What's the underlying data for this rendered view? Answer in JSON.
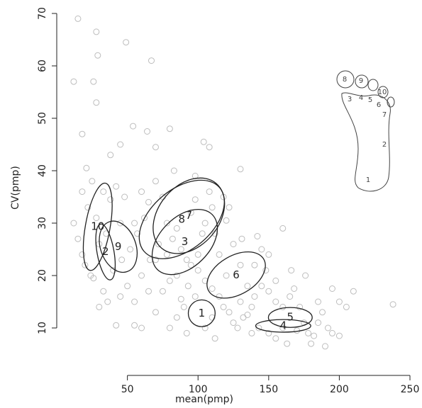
{
  "chart_data": {
    "type": "scatter",
    "x_label": "mean(pmp)",
    "y_label": "CV(pmp)",
    "xlim": [
      4,
      252
    ],
    "ylim": [
      3,
      71
    ],
    "xticks": [
      50,
      100,
      150,
      200,
      250
    ],
    "yticks": [
      10,
      20,
      30,
      40,
      50,
      60,
      70
    ],
    "point_color": "#bdbdbd",
    "ellipse_color": "#222222",
    "x": [
      15,
      28,
      29,
      49,
      67,
      12,
      26,
      28,
      18,
      54,
      80,
      64,
      45,
      38,
      70,
      83,
      98,
      104,
      108,
      130,
      108,
      118,
      110,
      122,
      120,
      112,
      131,
      142,
      160,
      145,
      150,
      140,
      95,
      85,
      60,
      50,
      45,
      55,
      30,
      21,
      18,
      22,
      25,
      33,
      38,
      42,
      48,
      12,
      15,
      18,
      20,
      24,
      26,
      33,
      36,
      40,
      46,
      52,
      57,
      62,
      60,
      65,
      70,
      75,
      78,
      82,
      88,
      92,
      100,
      105,
      110,
      115,
      118,
      122,
      125,
      128,
      132,
      138,
      140,
      145,
      150,
      155,
      160,
      165,
      168,
      172,
      175,
      178,
      180,
      182,
      185,
      188,
      192,
      195,
      195,
      200,
      205,
      210,
      238,
      150,
      155,
      160,
      143,
      138,
      135,
      130,
      120,
      98,
      90,
      85,
      80,
      92,
      105,
      110,
      112,
      70,
      65,
      75,
      80,
      70,
      78,
      85,
      95,
      98,
      103,
      105,
      60,
      66,
      72,
      55,
      45,
      35,
      30,
      28,
      42,
      55,
      190,
      170,
      163,
      200,
      185,
      176,
      166,
      148,
      155,
      130,
      125,
      115,
      135,
      100,
      93,
      88
    ],
    "y": [
      69,
      66.5,
      62,
      64.5,
      61,
      57,
      57,
      53,
      47,
      48.5,
      48,
      47.5,
      45,
      43,
      44.5,
      40,
      39,
      45.5,
      44.5,
      40.3,
      36,
      35,
      33,
      33,
      30.5,
      28,
      27,
      27.5,
      29,
      25,
      24,
      22,
      22,
      20,
      20,
      18,
      16,
      15,
      14,
      40.5,
      36,
      33,
      38,
      36,
      34.5,
      37,
      35,
      30,
      27,
      24,
      22,
      20,
      19.5,
      17,
      15,
      21,
      23,
      25,
      28,
      31,
      36,
      34,
      38,
      35,
      30,
      27,
      25,
      23,
      21,
      19,
      17.5,
      16,
      14,
      13,
      11,
      10,
      12,
      14,
      16,
      18,
      17,
      15,
      14,
      16,
      17.5,
      14,
      11,
      9,
      7,
      8.5,
      11,
      13,
      10,
      9,
      17.5,
      15,
      14,
      17,
      14.5,
      9,
      8,
      10,
      10,
      9,
      12.5,
      15,
      20,
      16,
      14,
      12,
      10,
      9,
      10,
      12,
      8,
      13,
      17,
      17,
      19,
      23,
      24,
      29,
      32,
      34.5,
      28,
      30,
      10,
      23,
      26,
      30,
      30,
      28,
      26,
      31,
      10.5,
      10.5,
      6.5,
      9.5,
      7,
      8.5,
      15,
      20,
      21,
      21,
      19,
      22,
      26,
      24,
      18,
      24,
      18,
      15.5
    ],
    "ellipses": [
      {
        "label": "1",
        "x": 102.6,
        "y": 12.8,
        "width": 19,
        "height": 5.1,
        "angle": 0
      },
      {
        "label": "2",
        "x": 34.5,
        "y": 24.5,
        "width": 12,
        "height": 10.8,
        "angle": 10
      },
      {
        "label": "3",
        "x": 90.6,
        "y": 26.4,
        "width": 55,
        "height": 9.5,
        "angle": 45
      },
      {
        "label": "4",
        "x": 160.3,
        "y": 10.4,
        "width": 39,
        "height": 2.4,
        "angle": 0
      },
      {
        "label": "5",
        "x": 165.3,
        "y": 12.0,
        "width": 31,
        "height": 3.8,
        "angle": 0
      },
      {
        "label": "6",
        "x": 127,
        "y": 20.1,
        "width": 45,
        "height": 7.4,
        "angle": 30
      },
      {
        "label": "7",
        "x": 93.5,
        "y": 31.4,
        "width": 60,
        "height": 11.5,
        "angle": 50
      },
      {
        "label": "8",
        "x": 88.5,
        "y": 30.7,
        "width": 70,
        "height": 11.5,
        "angle": 40
      },
      {
        "label": "9",
        "x": 43.5,
        "y": 25.5,
        "width": 25,
        "height": 10.1,
        "angle": 20
      },
      {
        "label": "10",
        "x": 29,
        "y": 29.3,
        "width": 17.5,
        "height": 16.9,
        "angle": -10
      }
    ],
    "foot_labels": [
      "8",
      "9",
      "10",
      "3",
      "4",
      "5",
      "6",
      "7",
      "2",
      "1"
    ]
  }
}
